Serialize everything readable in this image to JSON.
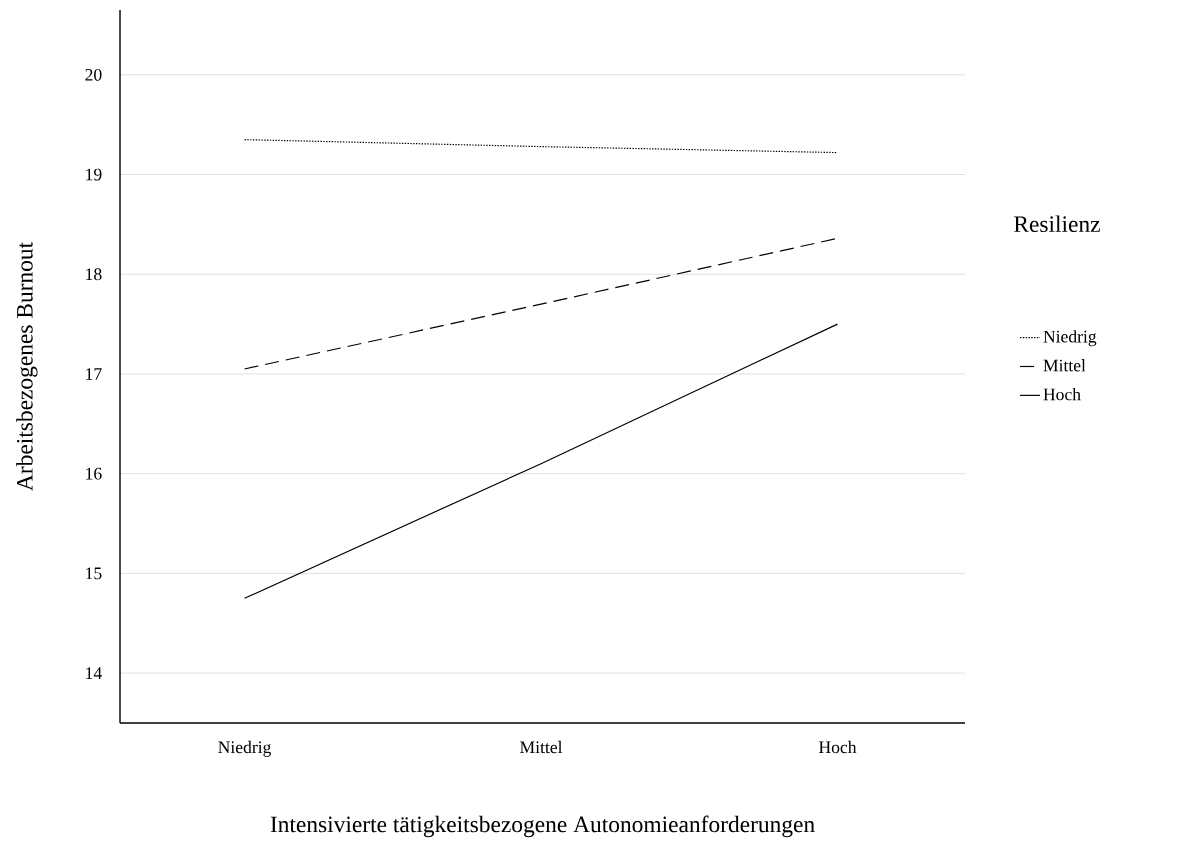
{
  "chart_data": {
    "type": "line",
    "xlabel": "Intensivierte tätigkeitsbezogene Autonomieanforderungen",
    "ylabel": "Arbeitsbezogenes Burnout",
    "legend_title": "Resilienz",
    "categories": [
      "Niedrig",
      "Mittel",
      "Hoch"
    ],
    "series": [
      {
        "name": "Niedrig",
        "color": "#000000",
        "line_style": "dotted",
        "values": [
          19.35,
          19.28,
          19.22
        ]
      },
      {
        "name": "Mittel",
        "color": "#000000",
        "line_style": "dashed",
        "values": [
          17.05,
          17.7,
          18.36
        ]
      },
      {
        "name": "Hoch",
        "color": "#000000",
        "line_style": "solid",
        "values": [
          14.75,
          16.1,
          17.5
        ]
      }
    ],
    "ylim": [
      13.5,
      20.65
    ],
    "yticks": [
      14,
      15,
      16,
      17,
      18,
      19,
      20
    ],
    "grid": "y",
    "legend": "right",
    "marker": "none"
  }
}
